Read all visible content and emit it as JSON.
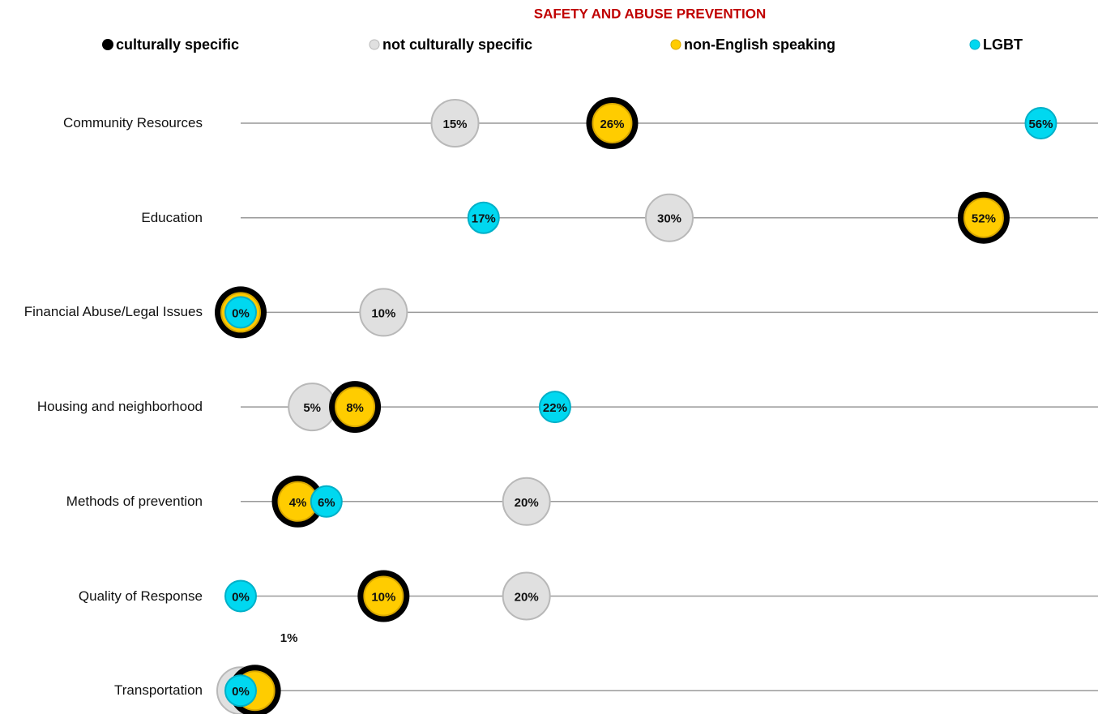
{
  "chart_data": {
    "type": "dot",
    "title": "SAFETY AND ABUSE PREVENTION",
    "categories": [
      "Community Resources",
      "Education",
      "Financial Abuse/Legal Issues",
      "Housing and neighborhood",
      "Methods of prevention",
      "Quality of Response",
      "Transportation"
    ],
    "xlim": [
      0,
      60
    ],
    "series": [
      {
        "name": "culturally specific",
        "color": "#000000",
        "values": [
          26,
          52,
          0,
          8,
          4,
          10,
          1
        ]
      },
      {
        "name": "not culturally specific",
        "color": "#e0e0e0",
        "values": [
          15,
          30,
          10,
          5,
          20,
          20,
          0
        ],
        "value_labels": [
          "15%",
          "30%",
          "10%",
          "5%",
          "20%",
          "20%",
          null
        ]
      },
      {
        "name": "non-English speaking",
        "color": "#ffcc00",
        "values": [
          26,
          52,
          0,
          8,
          4,
          10,
          1
        ],
        "value_labels": [
          "26%",
          "52%",
          null,
          "8%",
          "4%",
          "10%",
          "1%"
        ]
      },
      {
        "name": "LGBT",
        "color": "#00d8f0",
        "values": [
          56,
          17,
          0,
          22,
          6,
          0,
          0
        ],
        "value_labels": [
          "56%",
          "17%",
          "0%",
          "22%",
          "6%",
          "0%",
          "0%"
        ]
      }
    ]
  }
}
